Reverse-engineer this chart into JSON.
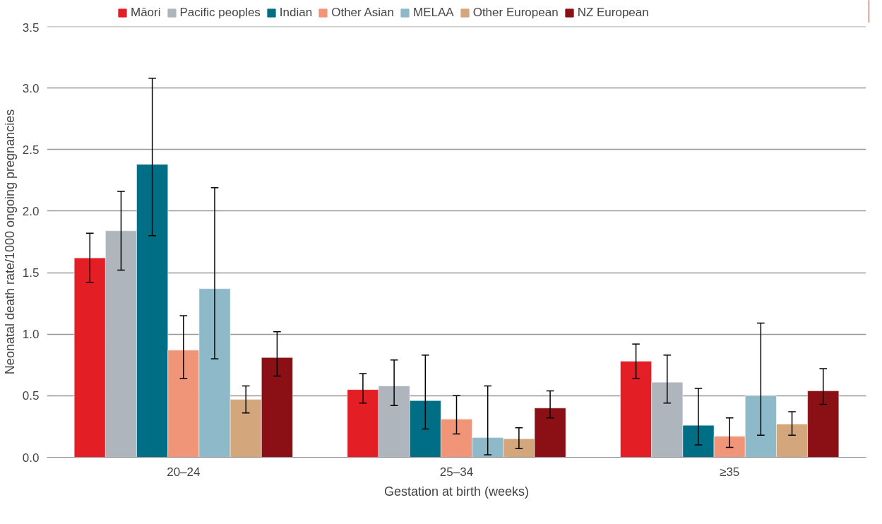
{
  "chart_data": {
    "type": "bar",
    "xlabel": "Gestation at birth (weeks)",
    "ylabel": "Neonatal death rate/1000 ongoing pregnancies",
    "categories": [
      "20–24",
      "25–34",
      "≥35"
    ],
    "ylim": [
      0,
      3.5
    ],
    "yticks": [
      {
        "value": 0,
        "label": "0.0"
      },
      0.5,
      {
        "value": 1,
        "label": "1.0"
      },
      1.5,
      {
        "value": 2,
        "label": "2.0"
      },
      2.5,
      {
        "value": 3,
        "label": "3.0"
      },
      3.5
    ],
    "grid": "y",
    "legend": "top",
    "series": [
      {
        "name": "Māori",
        "color": "#e31e24",
        "values": [
          1.62,
          0.55,
          0.78
        ],
        "errors": [
          [
            1.42,
            1.82
          ],
          [
            0.44,
            0.68
          ],
          [
            0.64,
            0.92
          ]
        ]
      },
      {
        "name": "Pacific peoples",
        "color": "#aeb5bc",
        "values": [
          1.84,
          0.58,
          0.61
        ],
        "errors": [
          [
            1.52,
            2.16
          ],
          [
            0.42,
            0.79
          ],
          [
            0.44,
            0.83
          ]
        ]
      },
      {
        "name": "Indian",
        "color": "#006e85",
        "values": [
          2.38,
          0.46,
          0.26
        ],
        "errors": [
          [
            1.8,
            3.08
          ],
          [
            0.23,
            0.83
          ],
          [
            0.1,
            0.56
          ]
        ]
      },
      {
        "name": "Other Asian",
        "color": "#f19579",
        "values": [
          0.87,
          0.31,
          0.17
        ],
        "errors": [
          [
            0.64,
            1.15
          ],
          [
            0.19,
            0.5
          ],
          [
            0.08,
            0.32
          ]
        ]
      },
      {
        "name": "MELAA",
        "color": "#8db9c9",
        "values": [
          1.37,
          0.16,
          0.5
        ],
        "errors": [
          [
            0.8,
            2.19
          ],
          [
            0.02,
            0.58
          ],
          [
            0.18,
            1.09
          ]
        ]
      },
      {
        "name": "Other European",
        "color": "#d3a77b",
        "values": [
          0.47,
          0.15,
          0.27
        ],
        "errors": [
          [
            0.36,
            0.58
          ],
          [
            0.07,
            0.24
          ],
          [
            0.18,
            0.37
          ]
        ]
      },
      {
        "name": "NZ European",
        "color": "#8a1015",
        "values": [
          0.81,
          0.4,
          0.54
        ],
        "errors": [
          [
            0.66,
            1.02
          ],
          [
            0.32,
            0.54
          ],
          [
            0.43,
            0.72
          ]
        ]
      }
    ]
  }
}
